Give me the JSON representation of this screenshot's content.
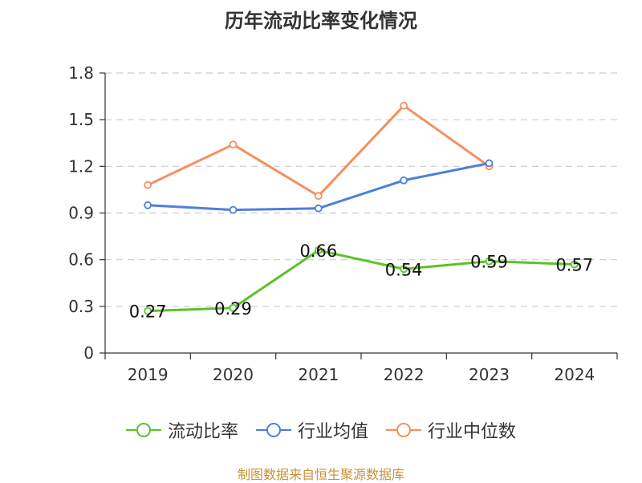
{
  "chart_data": {
    "type": "line",
    "title": "历年流动比率变化情况",
    "categories": [
      "2019",
      "2020",
      "2021",
      "2022",
      "2023",
      "2024"
    ],
    "ylim": [
      0,
      1.8
    ],
    "yticks": [
      "0",
      "0.3",
      "0.6",
      "0.9",
      "1.2",
      "1.5",
      "1.8"
    ],
    "grid": true,
    "legend_position": "bottom",
    "series": [
      {
        "name": "流动比率",
        "color": "#5bc228",
        "values": [
          0.27,
          0.29,
          0.66,
          0.54,
          0.59,
          0.57
        ],
        "labels": [
          "0.27",
          "0.29",
          "0.66",
          "0.54",
          "0.59",
          "0.57"
        ]
      },
      {
        "name": "行业均值",
        "color": "#4e7fd9",
        "values": [
          0.95,
          0.92,
          0.93,
          1.11,
          1.22,
          null
        ]
      },
      {
        "name": "行业中位数",
        "color": "#f59060",
        "values": [
          1.08,
          1.34,
          1.01,
          1.59,
          1.2,
          null
        ]
      }
    ]
  },
  "footer": "制图数据来自恒生聚源数据库"
}
